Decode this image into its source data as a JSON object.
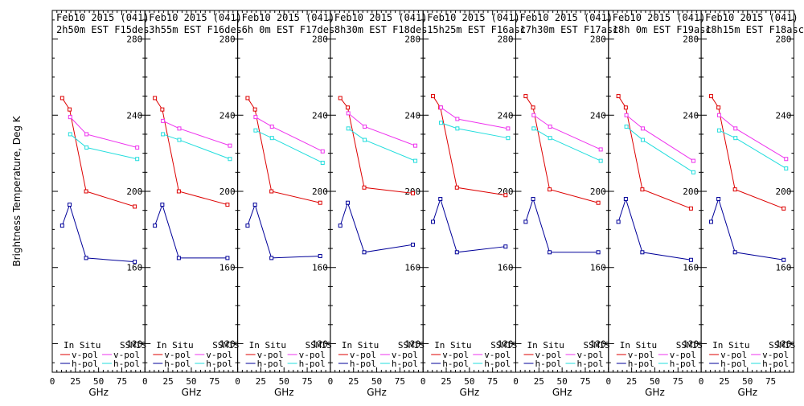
{
  "chart_data": {
    "type": "line",
    "ylabel": "Brightness Temperature, Deg K",
    "xlabel": "GHz",
    "xlim": [
      0,
      100
    ],
    "ylim": [
      105,
      295
    ],
    "x_tick_labels": [
      "0",
      "25",
      "50",
      "75"
    ],
    "y_tick_labels": [
      "120",
      "160",
      "200",
      "240",
      "280"
    ],
    "colors": {
      "insitu_v": "#dd0000",
      "insitu_h": "#000099",
      "ssmis_v": "#ee33ee",
      "ssmis_h": "#22dddd"
    },
    "legend": {
      "insitu_header": "In Situ",
      "ssmis_header": "SSMIS",
      "v_label": "v-pol",
      "h_label": "h-pol"
    },
    "panels": [
      {
        "title_line1": "Feb10 2015 (041)",
        "title_line2": "2h50m EST F15des",
        "series": [
          {
            "key": "insitu_v",
            "x": [
              10.7,
              18.7,
              36.5,
              89
            ],
            "y": [
              249,
              243,
              200,
              192
            ]
          },
          {
            "key": "insitu_h",
            "x": [
              10.7,
              18.7,
              36.5,
              89
            ],
            "y": [
              182,
              193,
              165,
              163
            ]
          },
          {
            "key": "ssmis_v",
            "x": [
              19.35,
              37,
              91.65
            ],
            "y": [
              239,
              230,
              223
            ]
          },
          {
            "key": "ssmis_h",
            "x": [
              19.35,
              37,
              91.65
            ],
            "y": [
              230,
              223,
              217
            ]
          }
        ]
      },
      {
        "title_line1": "Feb10 2015 (041)",
        "title_line2": "3h55m EST F16des",
        "series": [
          {
            "key": "insitu_v",
            "x": [
              10.7,
              18.7,
              36.5,
              89
            ],
            "y": [
              249,
              243,
              200,
              193
            ]
          },
          {
            "key": "insitu_h",
            "x": [
              10.7,
              18.7,
              36.5,
              89
            ],
            "y": [
              182,
              193,
              165,
              165
            ]
          },
          {
            "key": "ssmis_v",
            "x": [
              19.35,
              37,
              91.65
            ],
            "y": [
              237,
              233,
              224
            ]
          },
          {
            "key": "ssmis_h",
            "x": [
              19.35,
              37,
              91.65
            ],
            "y": [
              230,
              227,
              217
            ]
          }
        ]
      },
      {
        "title_line1": "Feb10 2015 (041)",
        "title_line2": "6h 0m EST F17des",
        "series": [
          {
            "key": "insitu_v",
            "x": [
              10.7,
              18.7,
              36.5,
              89
            ],
            "y": [
              249,
              243,
              200,
              194
            ]
          },
          {
            "key": "insitu_h",
            "x": [
              10.7,
              18.7,
              36.5,
              89
            ],
            "y": [
              182,
              193,
              165,
              166
            ]
          },
          {
            "key": "ssmis_v",
            "x": [
              19.35,
              37,
              91.65
            ],
            "y": [
              239,
              234,
              221
            ]
          },
          {
            "key": "ssmis_h",
            "x": [
              19.35,
              37,
              91.65
            ],
            "y": [
              232,
              228,
              215
            ]
          }
        ]
      },
      {
        "title_line1": "Feb10 2015 (041)",
        "title_line2": "8h30m EST F18des",
        "series": [
          {
            "key": "insitu_v",
            "x": [
              10.7,
              18.7,
              36.5,
              89
            ],
            "y": [
              249,
              244,
              202,
              199
            ]
          },
          {
            "key": "insitu_h",
            "x": [
              10.7,
              18.7,
              36.5,
              89
            ],
            "y": [
              182,
              194,
              168,
              172
            ]
          },
          {
            "key": "ssmis_v",
            "x": [
              19.35,
              37,
              91.65
            ],
            "y": [
              241,
              234,
              224
            ]
          },
          {
            "key": "ssmis_h",
            "x": [
              19.35,
              37,
              91.65
            ],
            "y": [
              233,
              227,
              216
            ]
          }
        ]
      },
      {
        "title_line1": "Feb10 2015 (041)",
        "title_line2": "15h25m EST F16asc",
        "series": [
          {
            "key": "insitu_v",
            "x": [
              10.7,
              18.7,
              36.5,
              89
            ],
            "y": [
              250,
              244,
              202,
              198
            ]
          },
          {
            "key": "insitu_h",
            "x": [
              10.7,
              18.7,
              36.5,
              89
            ],
            "y": [
              184,
              196,
              168,
              171
            ]
          },
          {
            "key": "ssmis_v",
            "x": [
              19.35,
              37,
              91.65
            ],
            "y": [
              244,
              238,
              233
            ]
          },
          {
            "key": "ssmis_h",
            "x": [
              19.35,
              37,
              91.65
            ],
            "y": [
              236,
              233,
              228
            ]
          }
        ]
      },
      {
        "title_line1": "Feb10 2015 (041)",
        "title_line2": "17h30m EST F17asc",
        "series": [
          {
            "key": "insitu_v",
            "x": [
              10.7,
              18.7,
              36.5,
              89
            ],
            "y": [
              250,
              244,
              201,
              194
            ]
          },
          {
            "key": "insitu_h",
            "x": [
              10.7,
              18.7,
              36.5,
              89
            ],
            "y": [
              184,
              196,
              168,
              168
            ]
          },
          {
            "key": "ssmis_v",
            "x": [
              19.35,
              37,
              91.65
            ],
            "y": [
              240,
              234,
              222
            ]
          },
          {
            "key": "ssmis_h",
            "x": [
              19.35,
              37,
              91.65
            ],
            "y": [
              233,
              228,
              216
            ]
          }
        ]
      },
      {
        "title_line1": "Feb10 2015 (041)",
        "title_line2": "18h 0m EST F19asc",
        "series": [
          {
            "key": "insitu_v",
            "x": [
              10.7,
              18.7,
              36.5,
              89
            ],
            "y": [
              250,
              244,
              201,
              191
            ]
          },
          {
            "key": "insitu_h",
            "x": [
              10.7,
              18.7,
              36.5,
              89
            ],
            "y": [
              184,
              196,
              168,
              164
            ]
          },
          {
            "key": "ssmis_v",
            "x": [
              19.35,
              37,
              91.65
            ],
            "y": [
              240,
              233,
              216
            ]
          },
          {
            "key": "ssmis_h",
            "x": [
              19.35,
              37,
              91.65
            ],
            "y": [
              234,
              227,
              210
            ]
          }
        ]
      },
      {
        "title_line1": "Feb10 2015 (041)",
        "title_line2": "18h15m EST F18asc",
        "series": [
          {
            "key": "insitu_v",
            "x": [
              10.7,
              18.7,
              36.5,
              89
            ],
            "y": [
              250,
              244,
              201,
              191
            ]
          },
          {
            "key": "insitu_h",
            "x": [
              10.7,
              18.7,
              36.5,
              89
            ],
            "y": [
              184,
              196,
              168,
              164
            ]
          },
          {
            "key": "ssmis_v",
            "x": [
              19.35,
              37,
              91.65
            ],
            "y": [
              240,
              233,
              217
            ]
          },
          {
            "key": "ssmis_h",
            "x": [
              19.35,
              37,
              91.65
            ],
            "y": [
              232,
              228,
              212
            ]
          }
        ]
      }
    ]
  }
}
